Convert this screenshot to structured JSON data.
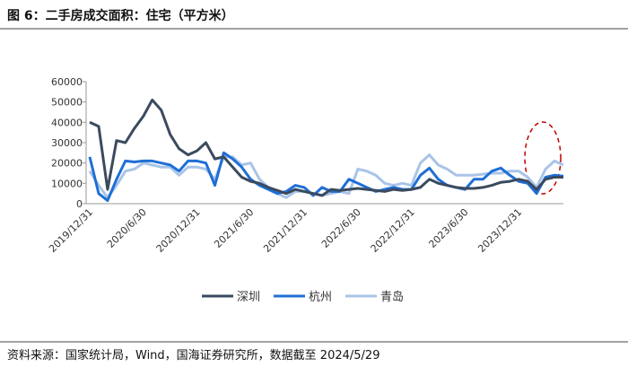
{
  "chart_data": {
    "type": "line",
    "title": "图 6：二手房成交面积：住宅（平方米）",
    "source": "资料来源：国家统计局，Wind，国海证券研究所，数据截至 2024/5/29",
    "categories": [
      "2019/12/31",
      null,
      null,
      null,
      null,
      null,
      "2020/6/30",
      null,
      null,
      null,
      null,
      null,
      "2020/12/31",
      null,
      null,
      null,
      null,
      null,
      "2021/6/30",
      null,
      null,
      null,
      null,
      null,
      "2021/12/31",
      null,
      null,
      null,
      null,
      null,
      "2022/6/30",
      null,
      null,
      null,
      null,
      null,
      "2022/12/31",
      null,
      null,
      null,
      null,
      null,
      "2023/6/30",
      null,
      null,
      null,
      null,
      null,
      "2023/12/31",
      null,
      null,
      null,
      null,
      null
    ],
    "series": [
      {
        "name": "深圳",
        "color": "#3b4a5e",
        "values": [
          40000,
          38000,
          7000,
          31000,
          30000,
          37000,
          43000,
          51000,
          46000,
          34000,
          27000,
          24000,
          26000,
          30000,
          22000,
          23000,
          18000,
          13000,
          11000,
          10000,
          8000,
          6500,
          5000,
          7000,
          6000,
          5000,
          4000,
          7000,
          6500,
          7000,
          7500,
          7000,
          6500,
          6000,
          7000,
          6500,
          7000,
          8000,
          12000,
          10000,
          9000,
          8000,
          7500,
          7500,
          8000,
          9000,
          10500,
          11000,
          12000,
          11000,
          7000,
          12000,
          13000,
          13000
        ]
      },
      {
        "name": "杭州",
        "color": "#1f6fd6",
        "values": [
          23000,
          5000,
          1500,
          12000,
          21000,
          20500,
          21000,
          21000,
          20000,
          19000,
          16000,
          21000,
          21000,
          20000,
          9000,
          25000,
          22000,
          18000,
          12000,
          9000,
          7000,
          5000,
          6000,
          9000,
          8000,
          4000,
          8000,
          6000,
          6000,
          12000,
          10000,
          8000,
          6000,
          7000,
          8000,
          7000,
          7000,
          14000,
          17500,
          12000,
          9000,
          8000,
          7000,
          12000,
          12000,
          16000,
          17500,
          14000,
          11000,
          10000,
          5000,
          13000,
          14000,
          13500
        ]
      },
      {
        "name": "青岛",
        "color": "#a9c4e8",
        "values": [
          16000,
          9000,
          3000,
          9000,
          16000,
          17000,
          20000,
          19000,
          18000,
          18000,
          14000,
          18000,
          18000,
          17000,
          12000,
          23000,
          23000,
          19000,
          20000,
          12000,
          8000,
          5000,
          3000,
          6000,
          6000,
          5000,
          4000,
          5000,
          6000,
          5000,
          17000,
          16000,
          14000,
          10000,
          9000,
          10000,
          9000,
          20000,
          24000,
          19000,
          17000,
          14000,
          14000,
          14000,
          14500,
          15000,
          15000,
          16000,
          16000,
          13000,
          8000,
          17000,
          21000,
          19000
        ]
      }
    ],
    "ylim": [
      0,
      60000
    ],
    "yticks": [
      0,
      10000,
      20000,
      30000,
      40000,
      50000,
      60000
    ],
    "grid": false
  }
}
